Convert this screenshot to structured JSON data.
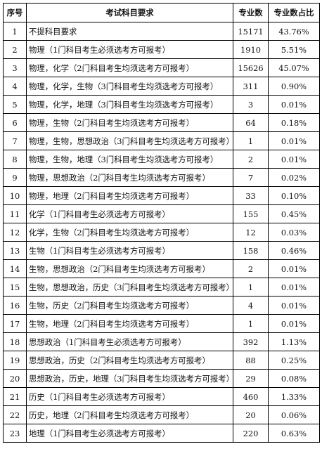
{
  "table": {
    "headers": [
      "序号",
      "考试科目要求",
      "专业数",
      "专业数占比"
    ],
    "rows": [
      [
        "1",
        "不提科目要求",
        "15171",
        "43.76%"
      ],
      [
        "2",
        "物理（1门科目考生必须选考方可报考）",
        "1910",
        "5.51%"
      ],
      [
        "3",
        "物理，化学（2门科目考生均须选考方可报考）",
        "15626",
        "45.07%"
      ],
      [
        "4",
        "物理，化学，生物（3门科目考生均须选考方可报考）",
        "311",
        "0.90%"
      ],
      [
        "5",
        "物理，化学，地理（3门科目考生均须选考方可报考）",
        "3",
        "0.01%"
      ],
      [
        "6",
        "物理，生物（2门科目考生均须选考方可报考）",
        "64",
        "0.18%"
      ],
      [
        "7",
        "物理，生物，思想政治（3门科目考生均须选考方可报考）",
        "1",
        "0.01%"
      ],
      [
        "8",
        "物理，生物，地理（3门科目考生均须选考方可报考）",
        "2",
        "0.01%"
      ],
      [
        "9",
        "物理，思想政治（2门科目考生均须选考方可报考）",
        "7",
        "0.02%"
      ],
      [
        "10",
        "物理，地理（2门科目考生均须选考方可报考）",
        "33",
        "0.10%"
      ],
      [
        "11",
        "化学（1门科目考生必须选考方可报考）",
        "155",
        "0.45%"
      ],
      [
        "12",
        "化学，生物（2门科目考生均须选考方可报考）",
        "12",
        "0.03%"
      ],
      [
        "13",
        "生物（1门科目考生必须选考方可报考）",
        "158",
        "0.46%"
      ],
      [
        "14",
        "生物，思想政治（2门科目考生均须选考方可报考）",
        "2",
        "0.01%"
      ],
      [
        "15",
        "生物，思想政治，历史（3门科目考生均须选考方可报考）",
        "1",
        "0.01%"
      ],
      [
        "16",
        "生物，历史（2门科目考生均须选考方可报考）",
        "4",
        "0.01%"
      ],
      [
        "17",
        "生物，地理（2门科目考生均须选考方可报考）",
        "1",
        "0.01%"
      ],
      [
        "18",
        "思想政治（1门科目考生必须选考方可报考）",
        "392",
        "1.13%"
      ],
      [
        "19",
        "思想政治，历史（2门科目考生均须选考方可报考）",
        "88",
        "0.25%"
      ],
      [
        "20",
        "思想政治，历史，地理（3门科目考生均须选考方可报考）",
        "29",
        "0.08%"
      ],
      [
        "21",
        "历史（1门科目考生必须选考方可报考）",
        "460",
        "1.33%"
      ],
      [
        "22",
        "历史，地理（2门科目考生均须选考方可报考）",
        "20",
        "0.06%"
      ],
      [
        "23",
        "地理（1门科目考生必须选考方可报考）",
        "220",
        "0.63%"
      ]
    ]
  }
}
